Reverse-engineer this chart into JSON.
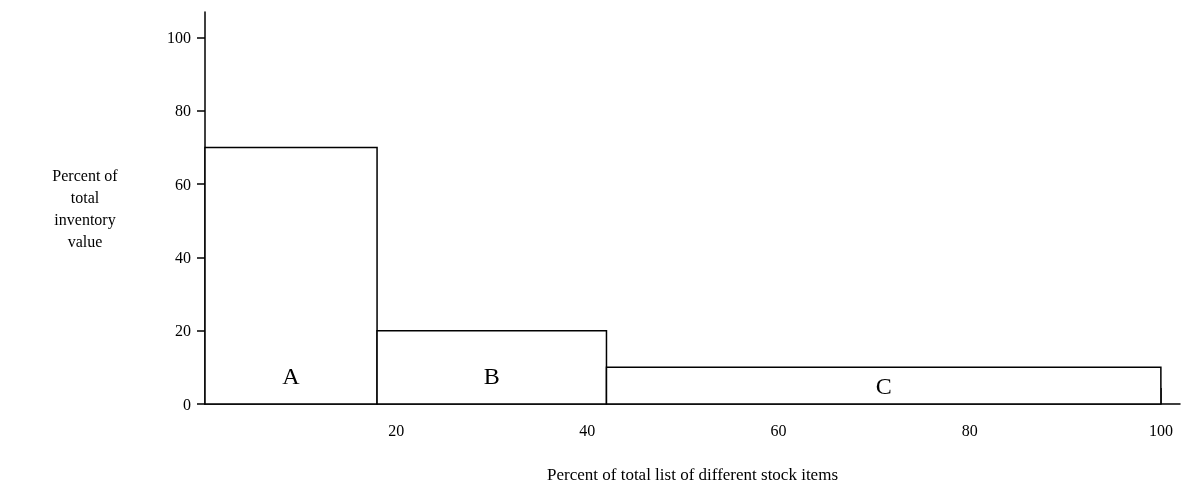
{
  "chart_data": {
    "type": "histogram",
    "xlabel": "Percent of total list of different stock items",
    "ylabel": "Percent of total inventory value",
    "bins": [
      0,
      18,
      42,
      100
    ],
    "values": [
      70,
      20,
      10
    ],
    "color": "#ffffff",
    "xlim": [
      0,
      102
    ],
    "xticks": [
      20,
      40,
      60,
      80,
      100
    ],
    "ylim": [
      0,
      107
    ],
    "yticks": [
      0,
      20,
      40,
      60,
      80,
      100
    ],
    "grid": false,
    "annotations": [
      "A",
      "B",
      "C"
    ]
  }
}
